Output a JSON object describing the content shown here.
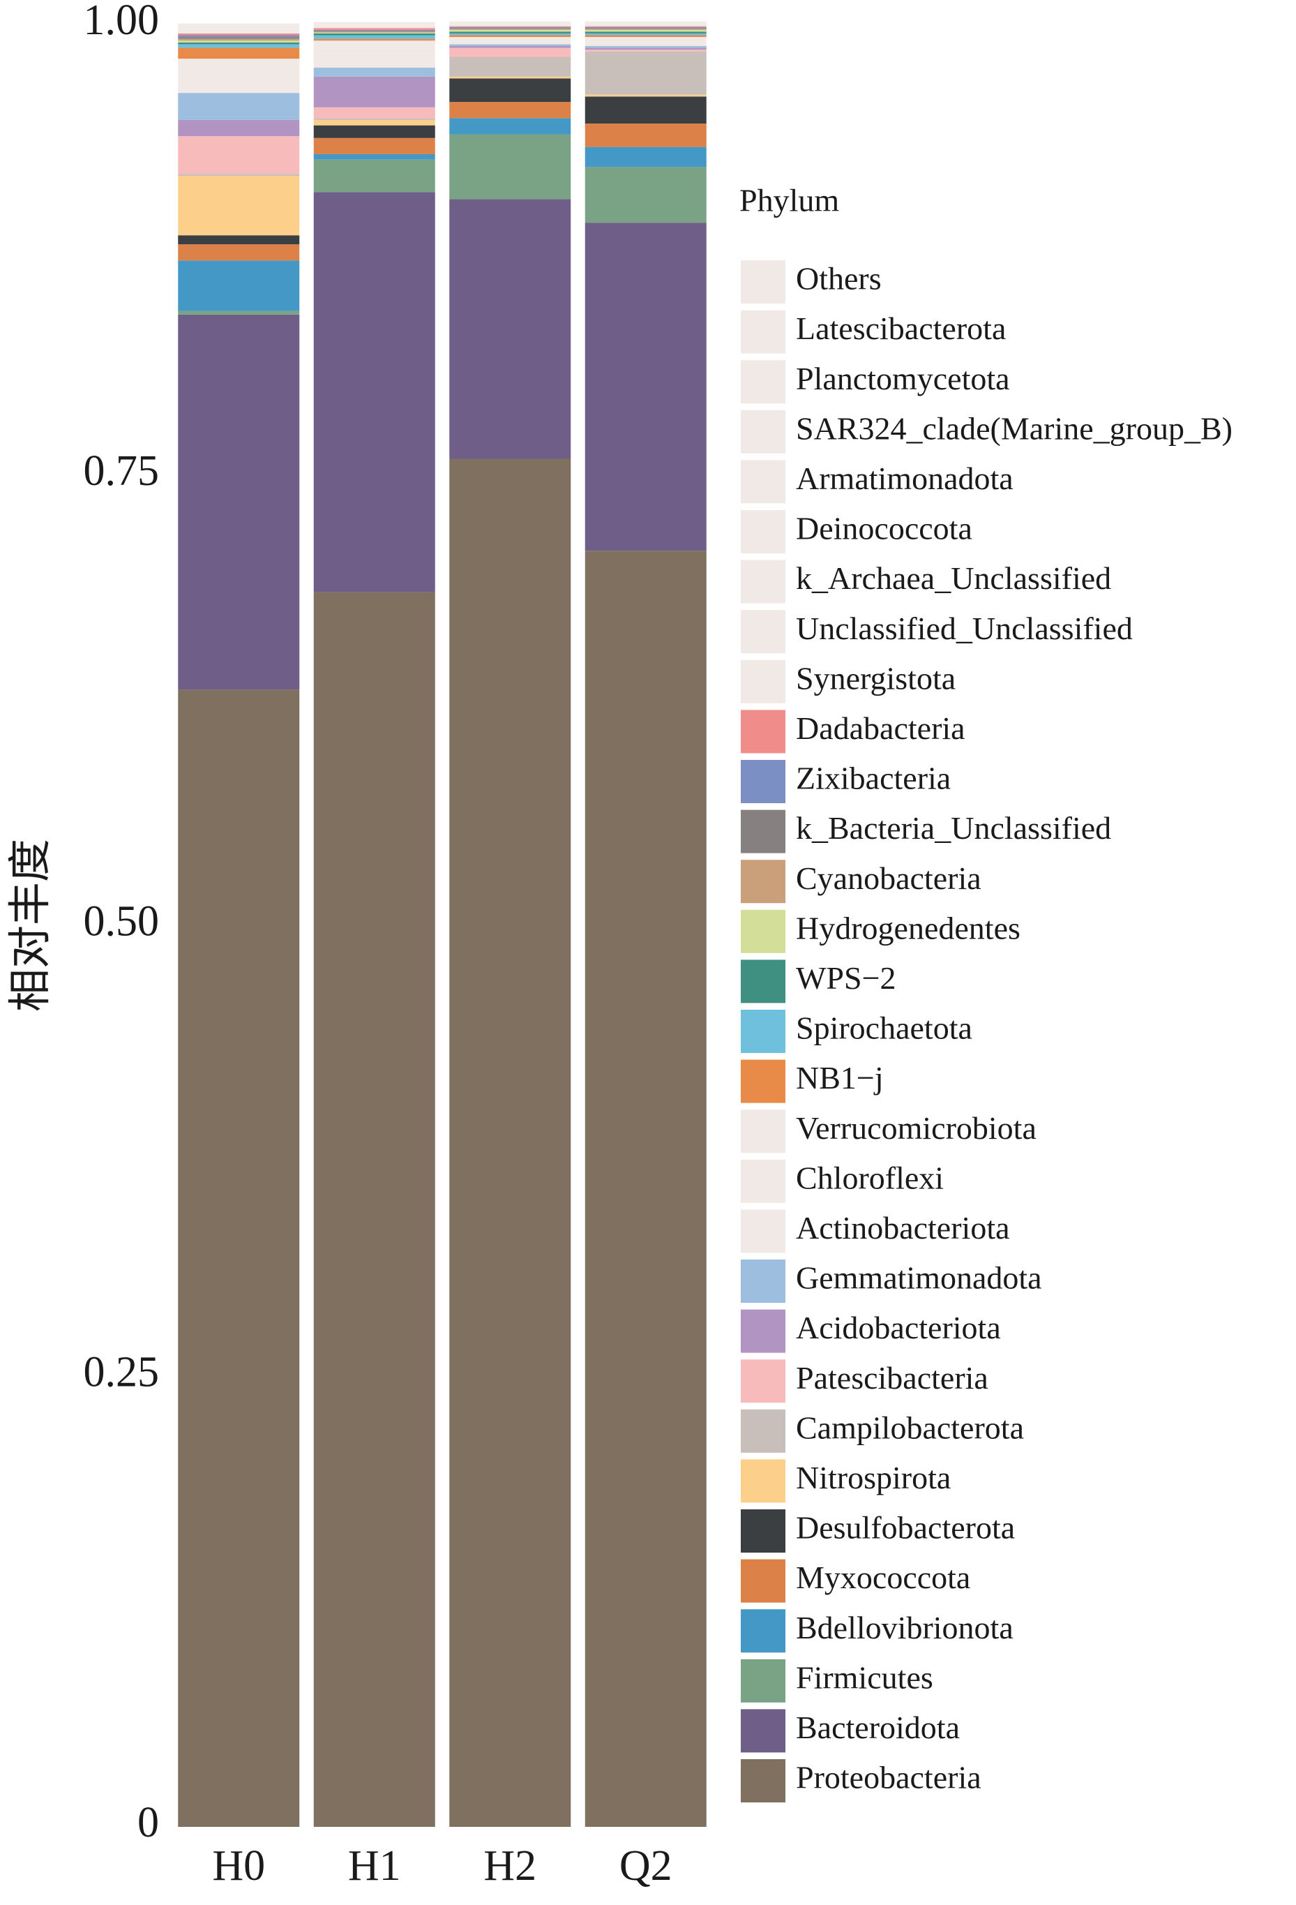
{
  "chart_data": {
    "type": "stacked_bar",
    "y_label": "相对丰度",
    "legend_title": "Phylum",
    "categories": [
      "H0",
      "H1",
      "H2",
      "Q2"
    ],
    "ylim": [
      0,
      1
    ],
    "yticks": [
      0,
      0.25,
      {
        "value": 0.5,
        "label": "0.50"
      },
      0.75,
      {
        "value": 1,
        "label": "1.00"
      }
    ],
    "series": [
      {
        "name": "Others",
        "color": "#f1e9e6",
        "values": [
          0.0005,
          0.0005,
          0.0003,
          0.0003
        ]
      },
      {
        "name": "Latescibacterota",
        "color": "#f1e9e6",
        "values": [
          0.0005,
          0.0003,
          0.0003,
          0.0003
        ]
      },
      {
        "name": "Planctomycetota",
        "color": "#f1e9e6",
        "values": [
          0.0005,
          0.0003,
          0.0003,
          0.0003
        ]
      },
      {
        "name": "SAR324_clade(Marine_group_B)",
        "color": "#f1e9e6",
        "values": [
          0.0005,
          0.0003,
          0.0003,
          0.0003
        ]
      },
      {
        "name": "Armatimonadota",
        "color": "#f1e9e6",
        "values": [
          0.0005,
          0.0003,
          0.0003,
          0.0003
        ]
      },
      {
        "name": "Deinococcota",
        "color": "#f1e9e6",
        "values": [
          0.0005,
          0.0003,
          0.0003,
          0.0003
        ]
      },
      {
        "name": "k_Archaea_Unclassified",
        "color": "#f1e9e6",
        "values": [
          0.0005,
          0.0003,
          0.0003,
          0.0003
        ]
      },
      {
        "name": "Unclassified_Unclassified",
        "color": "#f1e9e6",
        "values": [
          0.001,
          0.0005,
          0.0003,
          0.0003
        ]
      },
      {
        "name": "Synergistota",
        "color": "#f1e9e6",
        "values": [
          0.001,
          0.0005,
          0.0003,
          0.0003
        ]
      },
      {
        "name": "Dadabacteria",
        "color": "#f08d8a",
        "values": [
          0.001,
          0.001,
          0.0005,
          0.0005
        ]
      },
      {
        "name": "Zixibacteria",
        "color": "#7b8fc4",
        "values": [
          0.001,
          0.0005,
          0.0005,
          0.0005
        ]
      },
      {
        "name": "k_Bacteria_Unclassified",
        "color": "#878080",
        "values": [
          0.001,
          0.0005,
          0.0005,
          0.0005
        ]
      },
      {
        "name": "Cyanobacteria",
        "color": "#c9a07a",
        "values": [
          0.001,
          0.0005,
          0.0005,
          0.0005
        ]
      },
      {
        "name": "Hydrogenedentes",
        "color": "#d3df98",
        "values": [
          0.001,
          0.0005,
          0.001,
          0.001
        ]
      },
      {
        "name": "WPS−2",
        "color": "#3f9080",
        "values": [
          0.001,
          0.001,
          0.001,
          0.001
        ]
      },
      {
        "name": "Spirochaetota",
        "color": "#6fc0dc",
        "values": [
          0.002,
          0.002,
          0.001,
          0.001
        ]
      },
      {
        "name": "NB1−j",
        "color": "#e88a48",
        "values": [
          0.006,
          0.001,
          0.001,
          0.001
        ]
      },
      {
        "name": "Verrucomicrobiota",
        "color": "#f1e9e6",
        "values": [
          0.006,
          0.003,
          0.001,
          0.001
        ]
      },
      {
        "name": "Chloroflexi",
        "color": "#f1e9e6",
        "values": [
          0.005,
          0.004,
          0.001,
          0.002
        ]
      },
      {
        "name": "Actinobacteriota",
        "color": "#f1e9e6",
        "values": [
          0.008,
          0.008,
          0.002,
          0.002
        ]
      },
      {
        "name": "Gemmatimonadota",
        "color": "#9ebedf",
        "values": [
          0.015,
          0.005,
          0.001,
          0.001
        ]
      },
      {
        "name": "Acidobacteriota",
        "color": "#b294c2",
        "values": [
          0.009,
          0.017,
          0.001,
          0.001
        ]
      },
      {
        "name": "Patescibacteria",
        "color": "#f8bbbc",
        "values": [
          0.021,
          0.006,
          0.005,
          0.001
        ]
      },
      {
        "name": "Campilobacterota",
        "color": "#c8bfbb",
        "values": [
          0.001,
          0.001,
          0.011,
          0.024
        ]
      },
      {
        "name": "Nitrospirota",
        "color": "#fcd08a",
        "values": [
          0.033,
          0.003,
          0.001,
          0.001
        ]
      },
      {
        "name": "Desulfobacterota",
        "color": "#3b3f41",
        "values": [
          0.005,
          0.007,
          0.013,
          0.015
        ]
      },
      {
        "name": "Myxococcota",
        "color": "#dc8248",
        "values": [
          0.009,
          0.009,
          0.009,
          0.013
        ]
      },
      {
        "name": "Bdellovibrionota",
        "color": "#4398c6",
        "values": [
          0.028,
          0.003,
          0.009,
          0.011
        ]
      },
      {
        "name": "Firmicutes",
        "color": "#7aa386",
        "values": [
          0.002,
          0.018,
          0.036,
          0.031
        ]
      },
      {
        "name": "Bacteroidota",
        "color": "#6f5f88",
        "values": [
          0.208,
          0.222,
          0.144,
          0.182
        ]
      },
      {
        "name": "Proteobacteria",
        "color": "#7f705f",
        "values": [
          0.631,
          0.685,
          0.759,
          0.708
        ]
      }
    ]
  }
}
